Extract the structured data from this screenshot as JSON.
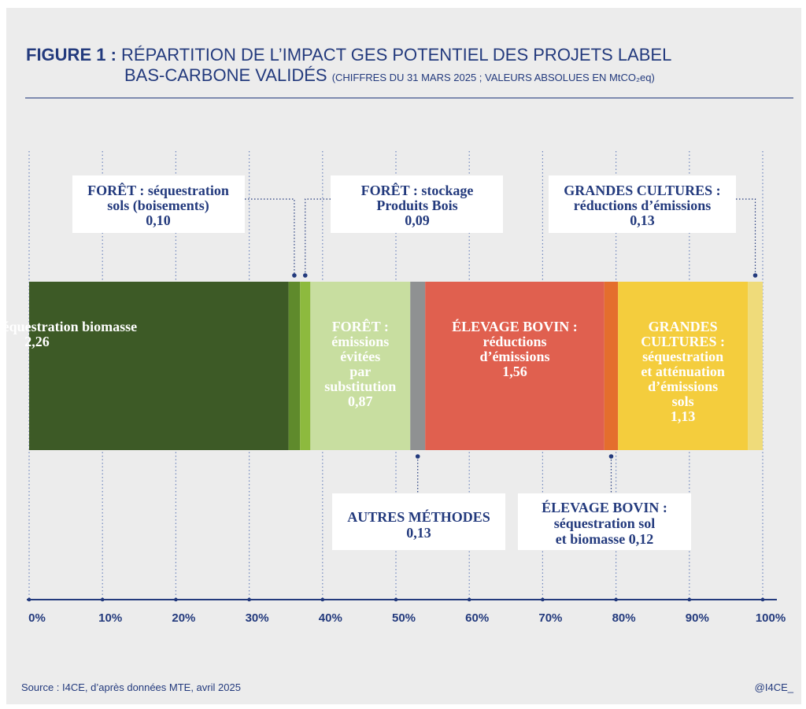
{
  "title": {
    "figure_label": "FIGURE 1 :",
    "line1": "RÉPARTITION DE L’IMPACT GES POTENTIEL DES PROJETS LABEL",
    "line2": "BAS-CARBONE VALIDÉS",
    "note": "(CHIFFRES DU 31 MARS 2025 ; VALEURS ABSOLUES EN MtCO₂eq)"
  },
  "footer": {
    "source": "Source : I4CE, d’après données MTE, avril 2025",
    "handle": "@I4CE_"
  },
  "colors": {
    "panel": "#ececec",
    "text": "#233a7d"
  },
  "chart_data": {
    "type": "bar",
    "orientation": "horizontal-stacked-100",
    "title": "RÉPARTITION DE L’IMPACT GES POTENTIEL DES PROJETS LABEL BAS-CARBONE VALIDÉS",
    "unit": "MtCO2eq",
    "xlim": [
      0,
      100
    ],
    "x_ticks": [
      "0%",
      "10%",
      "20%",
      "30%",
      "40%",
      "50%",
      "60%",
      "70%",
      "80%",
      "90%",
      "100%"
    ],
    "grid": true,
    "segments": [
      {
        "key": "foret_biomasse",
        "lines": [
          "FORÊT : séquestration biomasse",
          "2,26"
        ],
        "value": 2.26,
        "color": "#3d5a26",
        "label": "inside"
      },
      {
        "key": "foret_sols",
        "lines": [
          "FORÊT : séquestration",
          "sols (boisements)",
          "0,10"
        ],
        "value": 0.1,
        "color": "#5f8a2c",
        "label": "callout-top"
      },
      {
        "key": "foret_produits_bois",
        "lines": [
          "FORÊT : stockage",
          "Produits Bois",
          "0,09"
        ],
        "value": 0.09,
        "color": "#8dba3e",
        "label": "callout-top"
      },
      {
        "key": "foret_substitution",
        "lines": [
          "FORÊT :",
          "émissions",
          "évitées",
          "par",
          "substitution",
          "0,87"
        ],
        "value": 0.87,
        "color": "#c8dea0",
        "label": "inside"
      },
      {
        "key": "autres_methodes",
        "lines": [
          "AUTRES MÉTHODES",
          "0,13"
        ],
        "value": 0.13,
        "color": "#8f9192",
        "label": "callout-bottom"
      },
      {
        "key": "elevage_reductions",
        "lines": [
          "ÉLEVAGE BOVIN :",
          "réductions",
          "d’émissions",
          "1,56"
        ],
        "value": 1.56,
        "color": "#e0604f",
        "label": "inside"
      },
      {
        "key": "elevage_sequestration",
        "lines": [
          "ÉLEVAGE BOVIN :",
          "séquestration sol",
          "et biomasse 0,12"
        ],
        "value": 0.12,
        "color": "#e46e2d",
        "label": "callout-bottom"
      },
      {
        "key": "gc_sequestration",
        "lines": [
          "GRANDES",
          "CULTURES :",
          "séquestration",
          "et atténuation",
          "d’émissions",
          "sols",
          "1,13"
        ],
        "value": 1.13,
        "color": "#f4cd3d",
        "label": "inside"
      },
      {
        "key": "gc_reductions",
        "lines": [
          "GRANDES CULTURES :",
          "réductions d’émissions",
          "0,13"
        ],
        "value": 0.13,
        "color": "#efdb7a",
        "label": "callout-top"
      }
    ]
  }
}
